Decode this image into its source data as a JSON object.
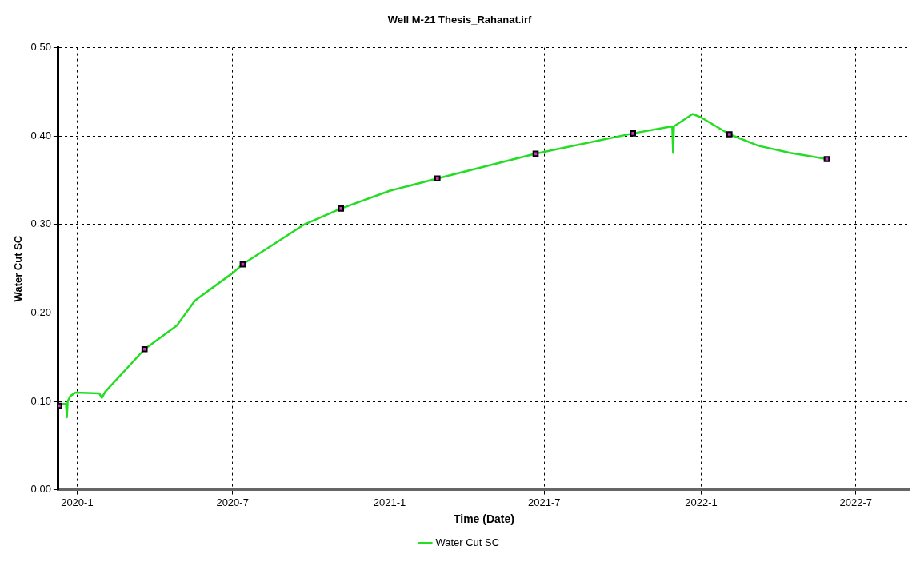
{
  "chart_data": {
    "type": "line",
    "title": "Well M-21 Thesis_Rahanat.irf",
    "xlabel": "Time (Date)",
    "ylabel": "Water Cut SC",
    "xlim": [
      "2019-12-10",
      "2022-09-02"
    ],
    "xticks": [
      {
        "value": "2020-01",
        "label": "2020-1"
      },
      {
        "value": "2020-07",
        "label": "2020-7"
      },
      {
        "value": "2021-01",
        "label": "2021-1"
      },
      {
        "value": "2021-07",
        "label": "2021-7"
      },
      {
        "value": "2022-01",
        "label": "2022-1"
      },
      {
        "value": "2022-07",
        "label": "2022-7"
      }
    ],
    "ylim": [
      0,
      0.5
    ],
    "yticks": [
      {
        "value": 0,
        "label": "0.00"
      },
      {
        "value": 0.1,
        "label": "0.10"
      },
      {
        "value": 0.2,
        "label": "0.20"
      },
      {
        "value": 0.3,
        "label": "0.30"
      },
      {
        "value": 0.4,
        "label": "0.40"
      },
      {
        "value": 0.5,
        "label": "0.50"
      }
    ],
    "grid": true,
    "legend": "bottom",
    "line_style": "solid",
    "series": [
      {
        "name": "Water Cut SC",
        "color": "#22dd22",
        "marker": "none",
        "x": [
          "2019-12-11",
          "2019-12-16",
          "2019-12-19",
          "2019-12-20",
          "2019-12-21",
          "2019-12-24",
          "2019-12-30",
          "2020-01-27",
          "2020-01-30",
          "2020-02-03",
          "2020-03-20",
          "2020-04-27",
          "2020-05-18",
          "2020-07-01",
          "2020-07-13",
          "2020-09-23",
          "2020-11-05",
          "2021-01-01",
          "2021-02-26",
          "2021-06-21",
          "2021-10-13",
          "2021-11-28",
          "2021-11-29",
          "2021-11-30",
          "2021-12-22",
          "2022-01-01",
          "2022-02-03",
          "2022-03-09",
          "2022-04-15",
          "2022-05-28"
        ],
        "values": [
          0.097,
          0.097,
          0.097,
          0.082,
          0.1,
          0.106,
          0.11,
          0.109,
          0.104,
          0.111,
          0.159,
          0.186,
          0.214,
          0.245,
          0.255,
          0.3,
          0.318,
          0.338,
          0.352,
          0.38,
          0.403,
          0.411,
          0.381,
          0.411,
          0.425,
          0.421,
          0.402,
          0.389,
          0.381,
          0.374
        ]
      },
      {
        "type": "scatter",
        "color": "#cc33cc",
        "marker": "square",
        "x": [
          "2019-12-11",
          "2020-03-20",
          "2020-07-13",
          "2020-11-05",
          "2021-02-26",
          "2021-06-21",
          "2021-10-13",
          "2022-02-03",
          "2022-05-28"
        ],
        "values": [
          0.095,
          0.159,
          0.255,
          0.318,
          0.352,
          0.38,
          0.403,
          0.402,
          0.374
        ]
      }
    ]
  }
}
